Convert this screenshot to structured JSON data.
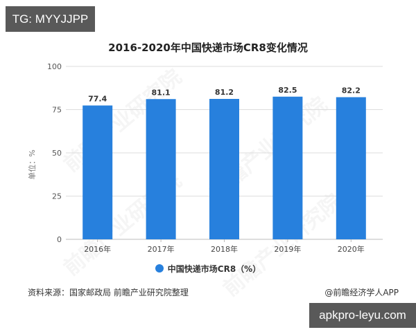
{
  "badges": {
    "top_left": "TG: MYYJJPP",
    "bottom_right": "apkpro-leyu.com"
  },
  "chart": {
    "title": "2016-2020年中国快递市场CR8变化情况",
    "ylabel": "单位：%",
    "legend_label": "中国快递市场CR8（%）",
    "source": "资料来源：国家邮政局 前瞻产业研究院整理",
    "credit": "@前瞻经济学人APP",
    "watermark": "前瞻产业研究院",
    "bar_color": "#2780dd",
    "grid_color": "#dddddd"
  },
  "chart_data": {
    "type": "bar",
    "title": "2016-2020年中国快递市场CR8变化情况",
    "xlabel": "",
    "ylabel": "单位：%",
    "categories": [
      "2016年",
      "2017年",
      "2018年",
      "2019年",
      "2020年"
    ],
    "series": [
      {
        "name": "中国快递市场CR8（%）",
        "values": [
          77.4,
          81.1,
          81.2,
          82.5,
          82.2
        ]
      }
    ],
    "ylim": [
      0,
      100
    ],
    "yticks": [
      0,
      25,
      50,
      75,
      100
    ],
    "grid": true,
    "legend_position": "bottom",
    "data_labels": [
      "77.4",
      "81.1",
      "81.2",
      "82.5",
      "82.2"
    ]
  }
}
